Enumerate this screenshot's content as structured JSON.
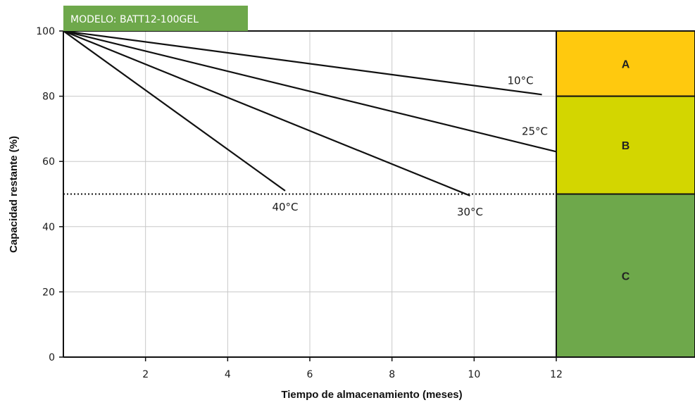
{
  "chart_data": {
    "type": "line",
    "model_label": "MODELO: BATT12-100GEL",
    "title": "",
    "xlabel": "Tiempo de almacenamiento (meses)",
    "ylabel": "Capacidad restante (%)",
    "xlim": [
      0,
      12
    ],
    "ylim": [
      0,
      100
    ],
    "x_ticks": [
      2,
      4,
      6,
      8,
      10,
      12
    ],
    "y_ticks": [
      0,
      20,
      40,
      60,
      80,
      100
    ],
    "grid": true,
    "reference_line": {
      "y": 50,
      "style": "dotted"
    },
    "series": [
      {
        "name": "10°C",
        "x": [
          0,
          11.65
        ],
        "y": [
          100,
          80.5
        ]
      },
      {
        "name": "25°C",
        "x": [
          0,
          12
        ],
        "y": [
          100,
          63
        ]
      },
      {
        "name": "30°C",
        "x": [
          0,
          9.9
        ],
        "y": [
          100,
          49.5
        ]
      },
      {
        "name": "40°C",
        "x": [
          0,
          5.4
        ],
        "y": [
          100,
          51
        ]
      }
    ],
    "zones": [
      {
        "label": "A",
        "from": 80,
        "to": 100,
        "color": "#ffc90e"
      },
      {
        "label": "B",
        "from": 50,
        "to": 80,
        "color": "#d3d600"
      },
      {
        "label": "C",
        "from": 0,
        "to": 50,
        "color": "#6ea84b"
      }
    ],
    "colors": {
      "model_badge": "#6ea84b",
      "lines": "#111111",
      "grid": "#c8c8c8"
    }
  }
}
